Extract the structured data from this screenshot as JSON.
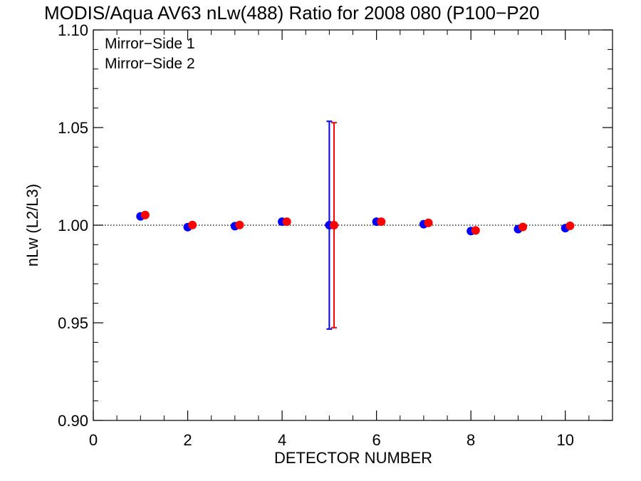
{
  "chart_data": {
    "type": "scatter",
    "title": "MODIS/Aqua AV63 nLw(488) Ratio for 2008 080 (P100−P20",
    "xlabel": "DETECTOR NUMBER",
    "ylabel": "nLw (L2/L3)",
    "xlim": [
      0,
      11
    ],
    "ylim": [
      0.9,
      1.1
    ],
    "xticks": [
      0,
      2,
      4,
      6,
      8,
      10
    ],
    "xtick_labels": [
      "0",
      "2",
      "4",
      "6",
      "8",
      "10"
    ],
    "yticks": [
      0.9,
      0.95,
      1.0,
      1.05,
      1.1
    ],
    "ytick_labels": [
      "0.90",
      "0.95",
      "1.00",
      "1.05",
      "1.10"
    ],
    "reference_line": 1.0,
    "legend_position": "top-left",
    "series": [
      {
        "name": "Mirror−Side 1",
        "color": "#0000ff",
        "x": [
          1,
          2,
          3,
          4,
          5,
          6,
          7,
          8,
          9,
          10
        ],
        "y": [
          1.0045,
          0.999,
          0.9995,
          1.0018,
          1.0,
          1.0018,
          1.0005,
          0.997,
          0.998,
          0.9985
        ],
        "errorbars": [
          {
            "x": 5,
            "low": 0.9468,
            "high": 1.0532
          }
        ]
      },
      {
        "name": "Mirror−Side 2",
        "color": "#ff0000",
        "x": [
          1.1,
          2.1,
          3.1,
          4.1,
          5.1,
          6.1,
          7.1,
          8.1,
          9.1,
          10.1
        ],
        "y": [
          1.0052,
          1.0001,
          1.0001,
          1.0018,
          1.0,
          1.0018,
          1.0012,
          0.9973,
          0.9991,
          0.9997
        ],
        "errorbars": [
          {
            "x": 5.1,
            "low": 0.9475,
            "high": 1.0525
          }
        ]
      }
    ]
  }
}
